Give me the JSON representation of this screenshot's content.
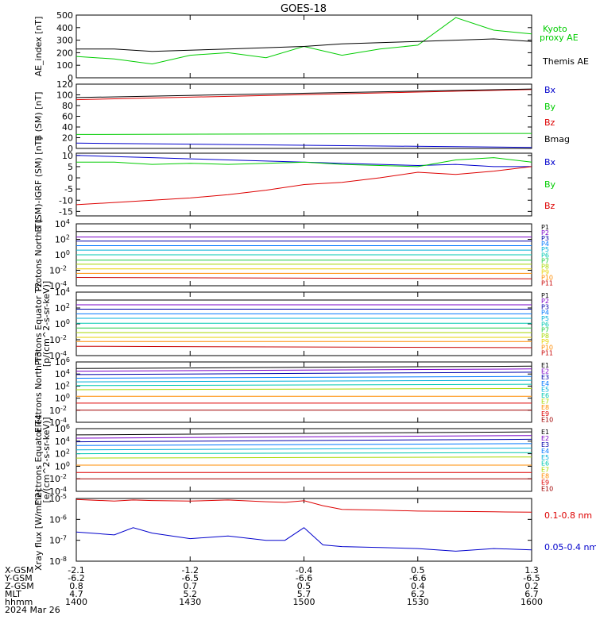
{
  "title": "GOES-18",
  "colors": {
    "black": "#000000",
    "red": "#dd0000",
    "green": "#00cc00",
    "blue": "#0000cc",
    "navy": "#0000aa",
    "purple": "#7a00c8",
    "azure": "#0077ff",
    "cyan": "#00b0d8",
    "teal": "#00c8b0",
    "lime": "#22cc44",
    "yellowgreen": "#a8d800",
    "yellow": "#e8d000",
    "orange": "#ff8c00",
    "darkred": "#c80000",
    "maroon": "#a00000"
  },
  "x_axis": {
    "ticks": [
      1400,
      1430,
      1500,
      1530,
      1600
    ],
    "rows": [
      {
        "label": "X-GSM",
        "values": [
          "-2.1",
          "-1.2",
          "-0.4",
          "0.5",
          "1.3"
        ]
      },
      {
        "label": "Y-GSM",
        "values": [
          "-6.2",
          "-6.5",
          "-6.6",
          "-6.6",
          "-6.5"
        ]
      },
      {
        "label": "Z-GSM",
        "values": [
          "0.8",
          "0.7",
          "0.5",
          "0.4",
          "0.2"
        ]
      },
      {
        "label": "MLT",
        "values": [
          "4.7",
          "5.2",
          "5.7",
          "6.2",
          "6.7"
        ]
      },
      {
        "label": "hhmm",
        "values": [
          "1400",
          "1430",
          "1500",
          "1530",
          "1600"
        ]
      }
    ],
    "date": "2024 Mar 26"
  },
  "chart_data": [
    {
      "type": "line",
      "ylabel": "AE_index [nT]",
      "ylim": [
        0,
        500
      ],
      "yticks": [
        "0",
        "100",
        "200",
        "300",
        "400",
        "500"
      ],
      "x": [
        1400,
        1410,
        1420,
        1430,
        1440,
        1450,
        1500,
        1510,
        1520,
        1530,
        1540,
        1550,
        1600
      ],
      "series": [
        {
          "name": "Kyoto proxy AE",
          "color": "#00cc00",
          "values": [
            170,
            150,
            110,
            180,
            200,
            160,
            250,
            180,
            230,
            260,
            480,
            380,
            350
          ]
        },
        {
          "name": "Themis AE",
          "color": "#000000",
          "values": [
            230,
            230,
            210,
            220,
            230,
            240,
            250,
            270,
            280,
            290,
            300,
            310,
            290
          ]
        }
      ]
    },
    {
      "type": "line",
      "ylabel": "B (SM) [nT]",
      "ylim": [
        0,
        120
      ],
      "yticks": [
        "0",
        "20",
        "40",
        "60",
        "80",
        "100",
        "120"
      ],
      "x": [
        1400,
        1600
      ],
      "series": [
        {
          "name": "Bx",
          "color": "#0000cc",
          "values": [
            10,
            2
          ]
        },
        {
          "name": "By",
          "color": "#00cc00",
          "values": [
            26,
            28
          ]
        },
        {
          "name": "Bz",
          "color": "#dd0000",
          "values": [
            91,
            110
          ]
        },
        {
          "name": "Bmag",
          "color": "#000000",
          "values": [
            95,
            111
          ]
        }
      ]
    },
    {
      "type": "line",
      "ylabel": "B (SM)-IGRF (SM) [nT]",
      "ylim": [
        -17,
        11
      ],
      "yticks": [
        "-15",
        "-10",
        "-5",
        "0",
        "5",
        "10"
      ],
      "x": [
        1400,
        1410,
        1420,
        1430,
        1440,
        1450,
        1500,
        1510,
        1520,
        1530,
        1540,
        1550,
        1600
      ],
      "series": [
        {
          "name": "Bx",
          "color": "#0000cc",
          "values": [
            10,
            9.5,
            9,
            8.5,
            8,
            7.5,
            7,
            6.5,
            6,
            5.5,
            6,
            5,
            5
          ]
        },
        {
          "name": "By",
          "color": "#00cc00",
          "values": [
            7,
            7,
            6,
            6.5,
            6,
            6.5,
            7,
            6,
            5.5,
            5,
            8,
            9,
            7
          ]
        },
        {
          "name": "Bz",
          "color": "#dd0000",
          "values": [
            -12,
            -11,
            -10,
            -9,
            -7.5,
            -5.5,
            -3,
            -2,
            0,
            2.5,
            1.5,
            3,
            5
          ]
        }
      ]
    },
    {
      "type": "line",
      "ylabel": "Protons North T1",
      "scale": "log",
      "ylim": [
        0.0001,
        10000
      ],
      "yticks": [
        "10^4",
        "10^2",
        "10^0",
        "10^-2",
        "10^-4"
      ],
      "series": [
        {
          "name": "P1",
          "color": "#000000",
          "values": [
            1000,
            1000
          ]
        },
        {
          "name": "P2",
          "color": "#7a00c8",
          "values": [
            200,
            200
          ]
        },
        {
          "name": "P3",
          "color": "#0000aa",
          "values": [
            60,
            60
          ]
        },
        {
          "name": "P4",
          "color": "#0077ff",
          "values": [
            15,
            15
          ]
        },
        {
          "name": "P5",
          "color": "#00b0d8",
          "values": [
            4,
            4
          ]
        },
        {
          "name": "P6",
          "color": "#00c8b0",
          "values": [
            1,
            1
          ]
        },
        {
          "name": "P7",
          "color": "#22cc44",
          "values": [
            0.2,
            0.2
          ]
        },
        {
          "name": "P8",
          "color": "#a8d800",
          "values": [
            0.06,
            0.06
          ]
        },
        {
          "name": "P9",
          "color": "#e8d000",
          "values": [
            0.015,
            0.015
          ]
        },
        {
          "name": "P10",
          "color": "#ff8c00",
          "values": [
            0.004,
            0.004
          ]
        },
        {
          "name": "P11",
          "color": "#c80000",
          "values": [
            0.0012,
            0.0008
          ]
        }
      ],
      "legend": [
        "P1",
        "P2",
        "P3",
        "P4",
        "P5",
        "P6",
        "P7",
        "P8",
        "P9",
        "P10",
        "P11"
      ]
    },
    {
      "type": "line",
      "ylabel": "Protons Equator T2",
      "unit": "[p/(cm^2-s-sr-keV)]",
      "scale": "log",
      "ylim": [
        0.0001,
        10000
      ],
      "yticks": [
        "10^4",
        "10^2",
        "10^0",
        "10^-2",
        "10^-4"
      ],
      "series": [
        {
          "name": "P1",
          "color": "#000000",
          "values": [
            1000,
            1000
          ]
        },
        {
          "name": "P2",
          "color": "#7a00c8",
          "values": [
            250,
            250
          ]
        },
        {
          "name": "P3",
          "color": "#0000aa",
          "values": [
            70,
            70
          ]
        },
        {
          "name": "P4",
          "color": "#0077ff",
          "values": [
            18,
            18
          ]
        },
        {
          "name": "P5",
          "color": "#00b0d8",
          "values": [
            5,
            5
          ]
        },
        {
          "name": "P6",
          "color": "#00c8b0",
          "values": [
            1.2,
            1.2
          ]
        },
        {
          "name": "P7",
          "color": "#22cc44",
          "values": [
            0.3,
            0.3
          ]
        },
        {
          "name": "P8",
          "color": "#a8d800",
          "values": [
            0.08,
            0.08
          ]
        },
        {
          "name": "P9",
          "color": "#e8d000",
          "values": [
            0.02,
            0.02
          ]
        },
        {
          "name": "P10",
          "color": "#ff8c00",
          "values": [
            0.006,
            0.006
          ]
        },
        {
          "name": "P11",
          "color": "#c80000",
          "values": [
            0.0015,
            0.001
          ]
        }
      ],
      "legend": [
        "P1",
        "P2",
        "P3",
        "P4",
        "P5",
        "P6",
        "P7",
        "P8",
        "P9",
        "P10",
        "P11"
      ]
    },
    {
      "type": "line",
      "ylabel": "Electrons North T3",
      "scale": "log",
      "ylim": [
        0.0001,
        1000000
      ],
      "yticks": [
        "10^6",
        "10^4",
        "10^2",
        "10^0",
        "10^-2",
        "10^-4"
      ],
      "series": [
        {
          "name": "E1",
          "color": "#000000",
          "values": [
            80000,
            200000
          ]
        },
        {
          "name": "E2",
          "color": "#7a00c8",
          "values": [
            30000,
            70000
          ]
        },
        {
          "name": "E3",
          "color": "#0000aa",
          "values": [
            8000,
            20000
          ]
        },
        {
          "name": "E4",
          "color": "#0077ff",
          "values": [
            2000,
            4000
          ]
        },
        {
          "name": "E5",
          "color": "#00b0d8",
          "values": [
            500,
            900
          ]
        },
        {
          "name": "E6",
          "color": "#00c8b0",
          "values": [
            120,
            200
          ]
        },
        {
          "name": "E7",
          "color": "#a8d800",
          "values": [
            25,
            40
          ]
        },
        {
          "name": "E8",
          "color": "#ff8c00",
          "values": [
            2,
            2
          ]
        },
        {
          "name": "E9",
          "color": "#dd0000",
          "values": [
            0.15,
            0.15
          ]
        },
        {
          "name": "E10",
          "color": "#a00000",
          "values": [
            0.01,
            0.01
          ]
        }
      ],
      "legend": [
        "E1",
        "E2",
        "E3",
        "E4",
        "E5",
        "E6",
        "E7",
        "E8",
        "E9",
        "E10"
      ]
    },
    {
      "type": "line",
      "ylabel": "Electrons Equator T4",
      "unit": "[e/(cm^2-s-sr-keV)]",
      "scale": "log",
      "ylim": [
        0.0001,
        1000000
      ],
      "yticks": [
        "10^6",
        "10^4",
        "10^2",
        "10^0",
        "10^-2",
        "10^-4"
      ],
      "series": [
        {
          "name": "E1",
          "color": "#000000",
          "values": [
            100000,
            300000
          ]
        },
        {
          "name": "E2",
          "color": "#7a00c8",
          "values": [
            30000,
            80000
          ]
        },
        {
          "name": "E3",
          "color": "#0000aa",
          "values": [
            8000,
            20000
          ]
        },
        {
          "name": "E4",
          "color": "#0077ff",
          "values": [
            2000,
            4000
          ]
        },
        {
          "name": "E5",
          "color": "#00b0d8",
          "values": [
            400,
            800
          ]
        },
        {
          "name": "E6",
          "color": "#00c8b0",
          "values": [
            100,
            150
          ]
        },
        {
          "name": "E7",
          "color": "#a8d800",
          "values": [
            20,
            30
          ]
        },
        {
          "name": "E8",
          "color": "#ff8c00",
          "values": [
            1.5,
            1.5
          ]
        },
        {
          "name": "E9",
          "color": "#dd0000",
          "values": [
            0.1,
            0.1
          ]
        },
        {
          "name": "E10",
          "color": "#a00000",
          "values": [
            0.01,
            0.01
          ]
        }
      ],
      "legend": [
        "E1",
        "E2",
        "E3",
        "E4",
        "E5",
        "E6",
        "E7",
        "E8",
        "E9",
        "E10"
      ]
    },
    {
      "type": "line",
      "ylabel": "Xray flux [W/m^2]",
      "scale": "log",
      "ylim": [
        1e-08,
        1e-05
      ],
      "yticks": [
        "10^-5",
        "10^-6",
        "10^-7",
        "10^-8"
      ],
      "x": [
        1400,
        1410,
        1415,
        1420,
        1430,
        1440,
        1450,
        1455,
        1500,
        1505,
        1510,
        1520,
        1530,
        1540,
        1550,
        1600
      ],
      "series": [
        {
          "name": "0.1-0.8 nm",
          "color": "#dd0000",
          "values": [
            9e-06,
            7.5e-06,
            8.5e-06,
            8e-06,
            7.5e-06,
            8.5e-06,
            7e-06,
            6.5e-06,
            7.8e-06,
            4.5e-06,
            3e-06,
            2.8e-06,
            2.5e-06,
            2.4e-06,
            2.3e-06,
            2.2e-06
          ]
        },
        {
          "name": "0.05-0.4 nm",
          "color": "#0000cc",
          "values": [
            2.5e-07,
            1.8e-07,
            4e-07,
            2.2e-07,
            1.2e-07,
            1.6e-07,
            1e-07,
            1e-07,
            4e-07,
            6e-08,
            5e-08,
            4.5e-08,
            4e-08,
            3e-08,
            4e-08,
            3.5e-08
          ]
        }
      ]
    }
  ],
  "labels": {
    "ae_kyoto_1": "Kyoto",
    "ae_kyoto_2": "proxy AE",
    "ae_themis": "Themis AE",
    "xray_long": "0.1-0.8 nm",
    "xray_short": "0.05-0.4 nm"
  }
}
